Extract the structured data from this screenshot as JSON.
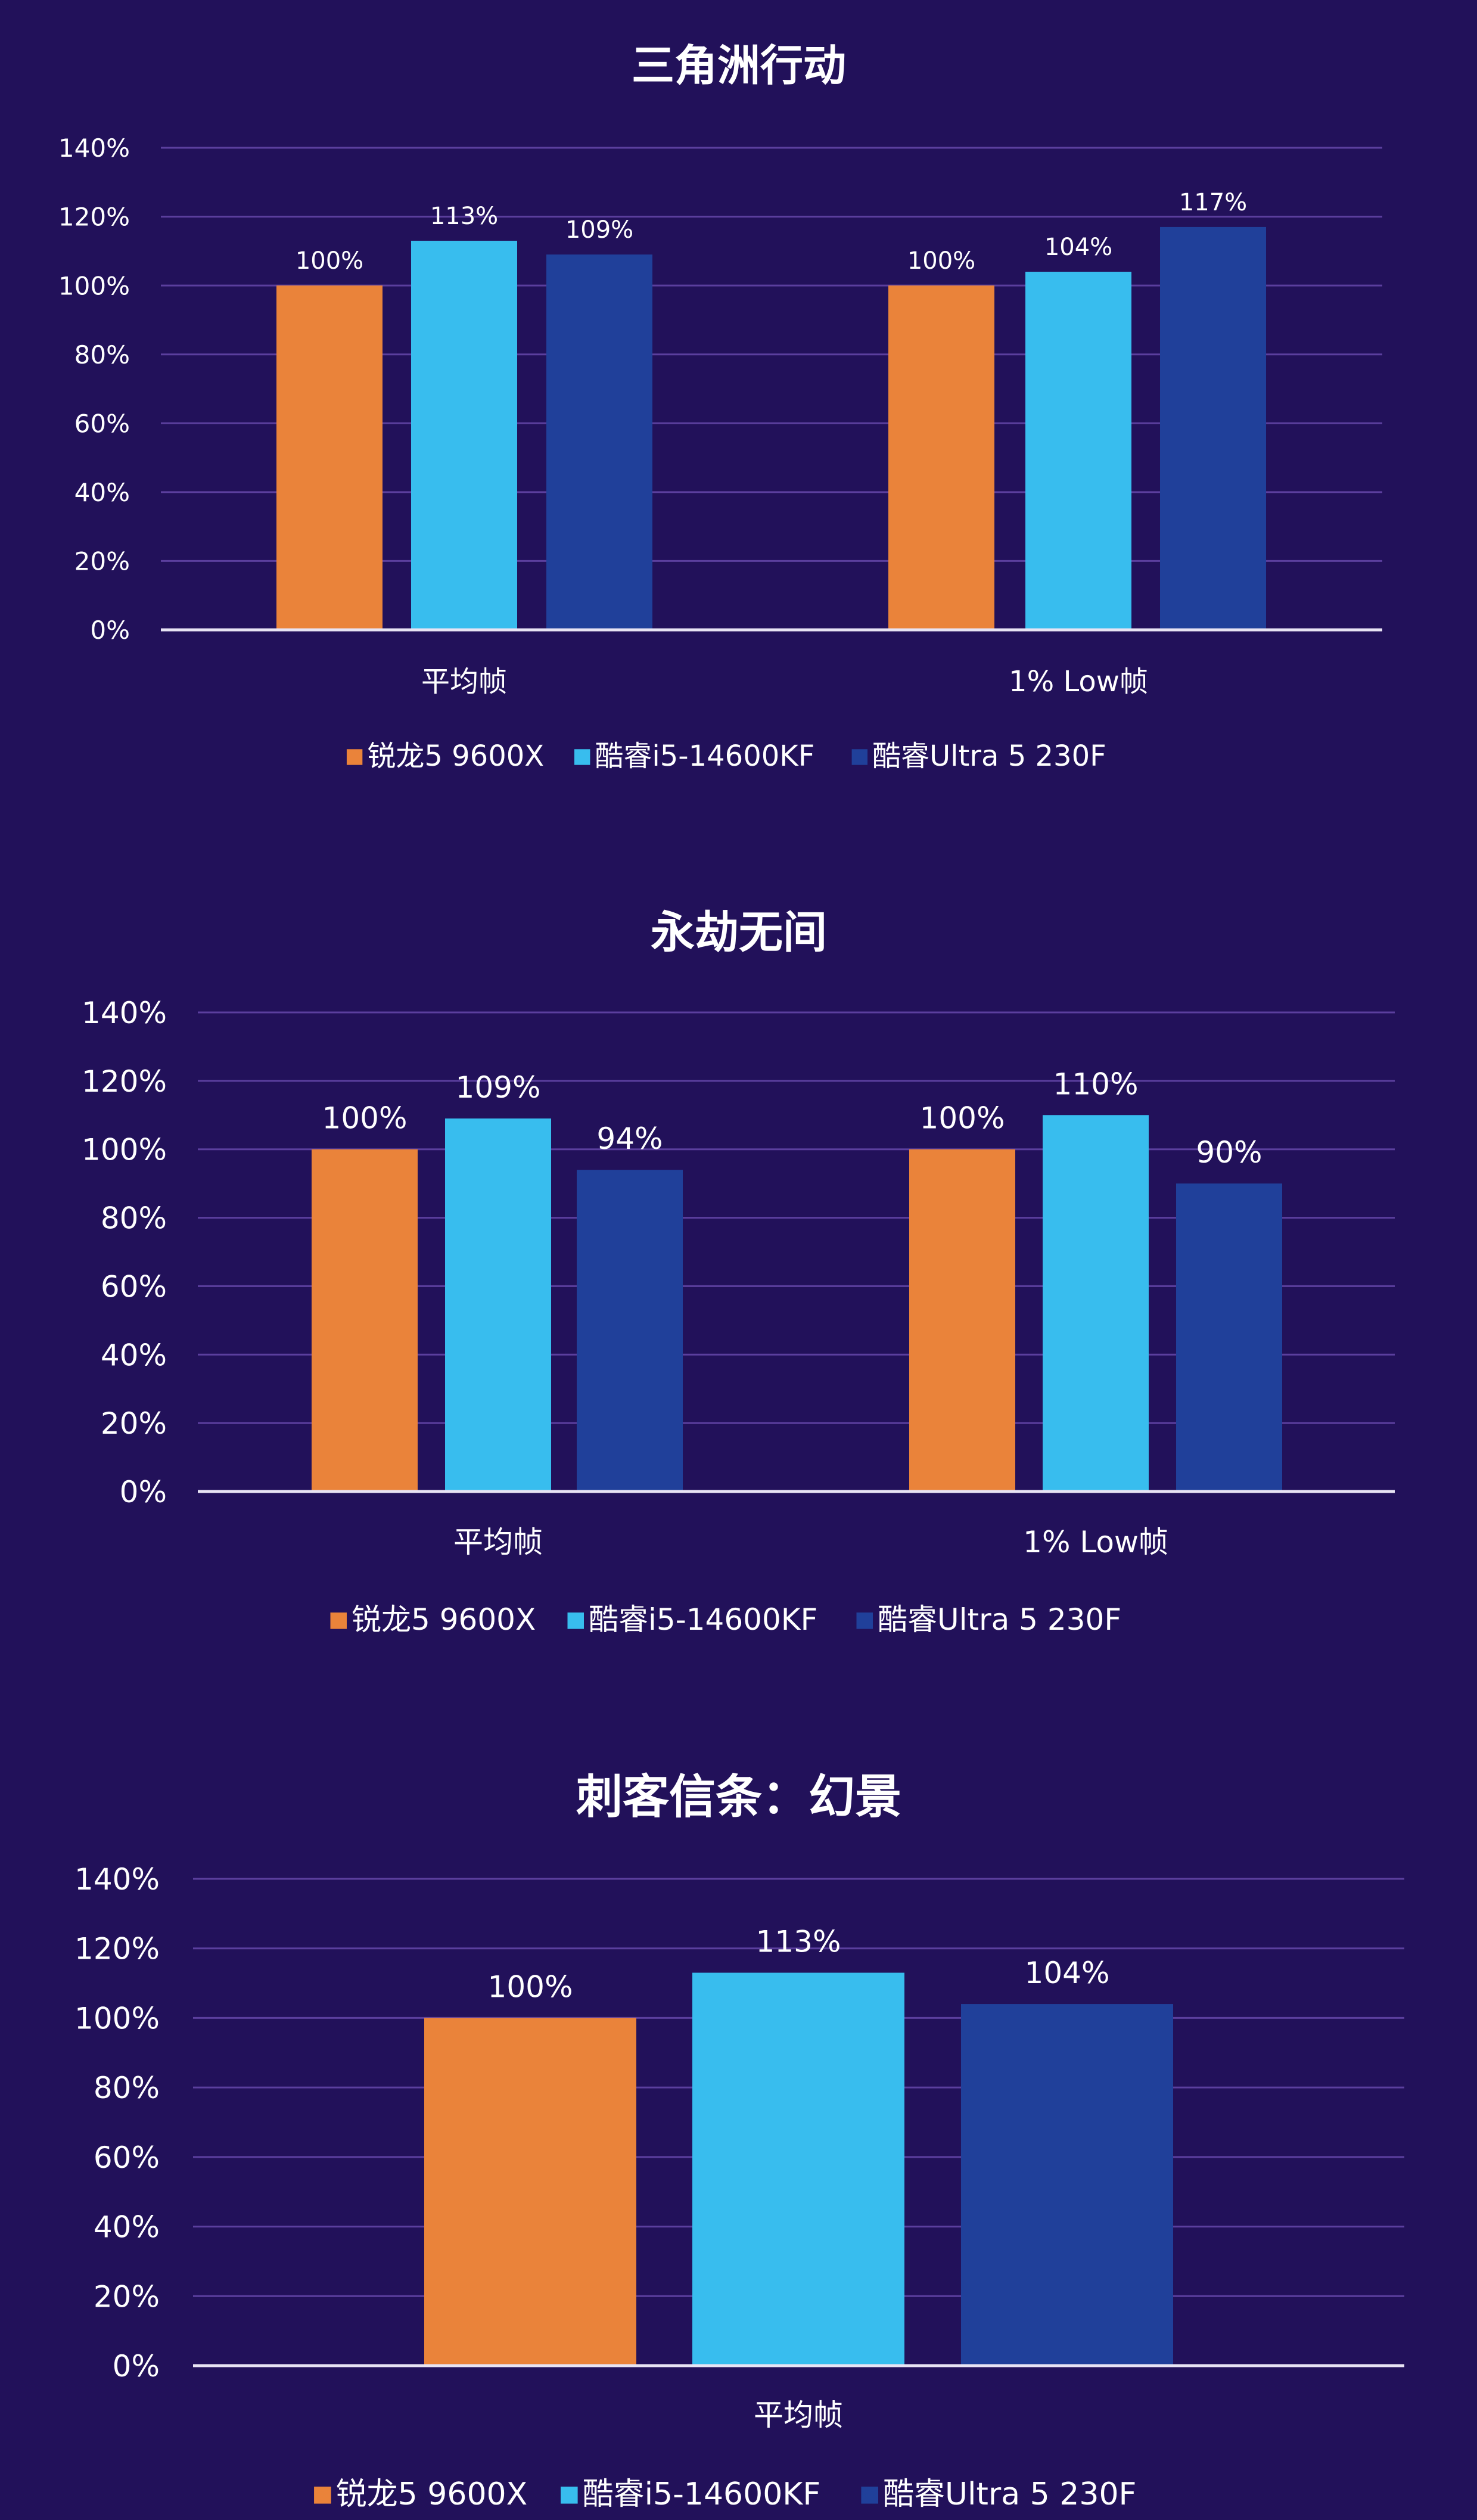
{
  "colors": {
    "background": "#22115a",
    "grid": "#5b3f9e",
    "axis": "#e8e4f4",
    "text": "#ffffff"
  },
  "legend_entries": [
    "锐龙5 9600X",
    "酷睿i5-14600KF",
    "酷睿Ultra 5 230F"
  ],
  "series_colors": [
    "#ea833a",
    "#38bdee",
    "#20409a"
  ],
  "chart_data": [
    {
      "type": "bar",
      "title": "三角洲行动",
      "categories": [
        "平均帧",
        "1% Low帧"
      ],
      "yticks": [
        "0%",
        "20%",
        "40%",
        "60%",
        "80%",
        "100%",
        "120%",
        "140%"
      ],
      "ylim": [
        0,
        140
      ],
      "grid": true,
      "legend_position": "bottom",
      "series": [
        {
          "name": "锐龙5 9600X",
          "values": [
            100,
            100
          ],
          "labels": [
            "100%",
            "100%"
          ]
        },
        {
          "name": "酷睿i5-14600KF",
          "values": [
            113,
            104
          ],
          "labels": [
            "113%",
            "104%"
          ]
        },
        {
          "name": "酷睿Ultra 5 230F",
          "values": [
            109,
            117
          ],
          "labels": [
            "109%",
            "117%"
          ]
        }
      ]
    },
    {
      "type": "bar",
      "title": "永劫无间",
      "categories": [
        "平均帧",
        "1% Low帧"
      ],
      "yticks": [
        "0%",
        "20%",
        "40%",
        "60%",
        "80%",
        "100%",
        "120%",
        "140%"
      ],
      "ylim": [
        0,
        140
      ],
      "grid": true,
      "legend_position": "bottom",
      "series": [
        {
          "name": "锐龙5 9600X",
          "values": [
            100,
            100
          ],
          "labels": [
            "100%",
            "100%"
          ]
        },
        {
          "name": "酷睿i5-14600KF",
          "values": [
            109,
            110
          ],
          "labels": [
            "109%",
            "110%"
          ]
        },
        {
          "name": "酷睿Ultra 5 230F",
          "values": [
            94,
            90
          ],
          "labels": [
            "94%",
            "90%"
          ]
        }
      ]
    },
    {
      "type": "bar",
      "title": "刺客信条：幻景",
      "categories": [
        "平均帧"
      ],
      "yticks": [
        "0%",
        "20%",
        "40%",
        "60%",
        "80%",
        "100%",
        "120%",
        "140%"
      ],
      "ylim": [
        0,
        140
      ],
      "grid": true,
      "legend_position": "bottom",
      "series": [
        {
          "name": "锐龙5 9600X",
          "values": [
            100
          ],
          "labels": [
            "100%"
          ]
        },
        {
          "name": "酷睿i5-14600KF",
          "values": [
            113
          ],
          "labels": [
            "113%"
          ]
        },
        {
          "name": "酷睿Ultra 5 230F",
          "values": [
            104
          ],
          "labels": [
            "104%"
          ]
        }
      ]
    }
  ]
}
